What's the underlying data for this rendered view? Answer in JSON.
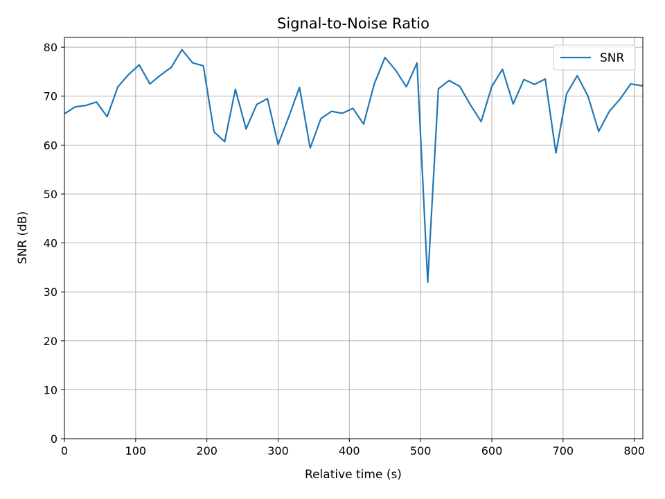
{
  "chart_data": {
    "type": "line",
    "title": "Signal-to-Noise Ratio",
    "xlabel": "Relative time (s)",
    "ylabel": "SNR (dB)",
    "xlim": [
      0,
      812
    ],
    "ylim": [
      0,
      82
    ],
    "xticks": [
      0,
      100,
      200,
      300,
      400,
      500,
      600,
      700,
      800
    ],
    "yticks": [
      0,
      10,
      20,
      30,
      40,
      50,
      60,
      70,
      80
    ],
    "grid": true,
    "legend_position": "top-right",
    "series": [
      {
        "name": "SNR",
        "color": "#1f77b4",
        "x": [
          0,
          15,
          30,
          45,
          60,
          75,
          90,
          105,
          120,
          135,
          150,
          165,
          180,
          195,
          210,
          225,
          240,
          255,
          270,
          285,
          300,
          315,
          330,
          345,
          360,
          375,
          390,
          405,
          420,
          435,
          450,
          465,
          480,
          495,
          510,
          525,
          540,
          555,
          570,
          585,
          600,
          615,
          630,
          645,
          660,
          675,
          690,
          705,
          720,
          735,
          750,
          765,
          780,
          795,
          812
        ],
        "y": [
          66.4,
          67.8,
          68.1,
          68.8,
          65.8,
          71.9,
          74.4,
          76.4,
          72.5,
          74.3,
          75.9,
          79.5,
          76.8,
          76.2,
          62.7,
          60.7,
          71.4,
          63.3,
          68.3,
          69.5,
          60.1,
          65.8,
          71.8,
          59.4,
          65.4,
          66.9,
          66.5,
          67.5,
          64.3,
          72.5,
          77.9,
          75.3,
          71.9,
          76.8,
          32.0,
          71.5,
          73.2,
          72.0,
          68.2,
          64.8,
          72.0,
          75.5,
          68.4,
          73.4,
          72.4,
          73.5,
          58.4,
          70.5,
          74.2,
          70.0,
          62.8,
          66.9,
          69.4,
          72.5,
          72.1
        ]
      }
    ]
  }
}
